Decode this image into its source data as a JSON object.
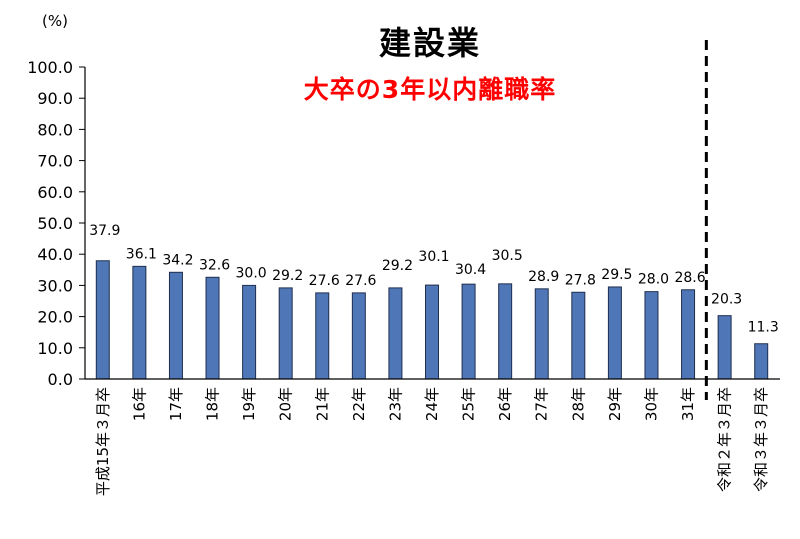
{
  "chart_data": {
    "type": "bar",
    "title": "建設業",
    "subtitle": "大卒の3年以内離職率",
    "unit": "(%)",
    "categories": [
      "平成15年３月卒",
      "16年",
      "17年",
      "18年",
      "19年",
      "20年",
      "21年",
      "22年",
      "23年",
      "24年",
      "25年",
      "26年",
      "27年",
      "28年",
      "29年",
      "30年",
      "31年",
      "令和２年３月卒",
      "令和３年３月卒"
    ],
    "values": [
      37.9,
      36.1,
      34.2,
      32.6,
      30.0,
      29.2,
      27.6,
      27.6,
      29.2,
      30.1,
      30.4,
      30.5,
      28.9,
      27.8,
      29.5,
      28.0,
      28.6,
      20.3,
      11.3
    ],
    "value_labels": [
      "37.9",
      "36.1",
      "34.2",
      "32.6",
      "30.0",
      "29.2",
      "27.6",
      "27.6",
      "29.2",
      "30.1",
      "30.4",
      "30.5",
      "28.9",
      "27.8",
      "29.5",
      "28.0",
      "28.6",
      "20.3",
      "11.3"
    ],
    "y_ticks": [
      "0.0",
      "10.0",
      "20.0",
      "30.0",
      "40.0",
      "50.0",
      "60.0",
      "70.0",
      "80.0",
      "90.0",
      "100.0"
    ],
    "ylim": [
      0,
      100
    ],
    "grid": false,
    "divider_after_category": 16,
    "colors": {
      "bar": "#4f76b6",
      "bar_stroke": "#1f2f4f",
      "subtitle": "#ff0000",
      "text": "#000000"
    }
  }
}
